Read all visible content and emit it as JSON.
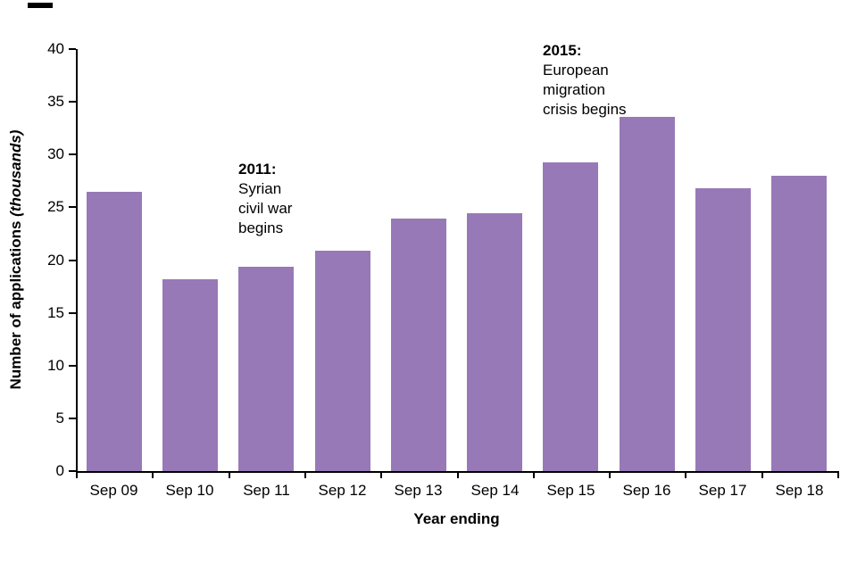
{
  "chart_data": {
    "type": "bar",
    "title": "",
    "categories": [
      "Sep 09",
      "Sep 10",
      "Sep 11",
      "Sep 12",
      "Sep 13",
      "Sep 14",
      "Sep 15",
      "Sep 16",
      "Sep 17",
      "Sep 18"
    ],
    "values": [
      26.5,
      18.2,
      19.4,
      20.9,
      23.9,
      24.4,
      29.3,
      33.6,
      26.8,
      28.0
    ],
    "xlabel": "Year ending",
    "ylabel": "Number of applications",
    "ylabel_italic": "(thousands)",
    "ylim": [
      0,
      40
    ],
    "ytick_step": 5,
    "ytick_labels": [
      "0",
      "5",
      "10",
      "15",
      "20",
      "25",
      "30",
      "35",
      "40"
    ],
    "grid": false,
    "legend": "none",
    "bar_color": "#9879B7",
    "axis_color": "#000000",
    "annotations": [
      {
        "bold": "2011:",
        "lines": [
          "Syrian",
          "civil war",
          "begins"
        ],
        "anchor_category_index": 2,
        "y_value": 29.5
      },
      {
        "bold": "2015:",
        "lines": [
          "European",
          "migration",
          "crisis begins"
        ],
        "anchor_category_index": 6,
        "y_value": 40.8
      }
    ]
  }
}
